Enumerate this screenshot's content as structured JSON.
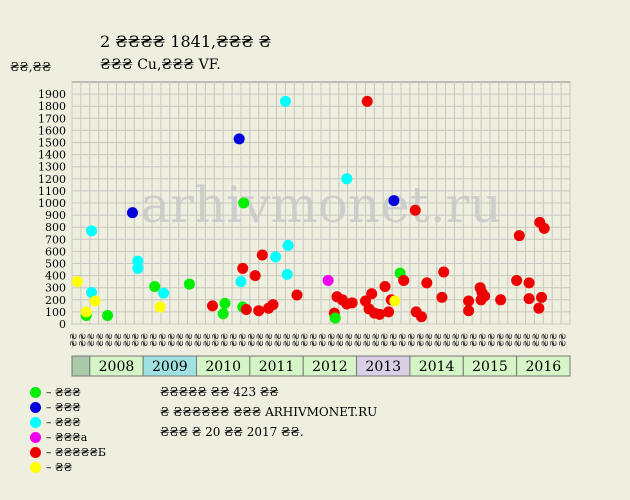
{
  "title": "2 ₴₴₴₴ 1841,₴₴₴ ₴",
  "subtitle": "₴₴₴ Cu,₴₴₴ VF.",
  "unit_label": "₴₴,₴₴",
  "watermark": "arhivmonet.ru",
  "notes": [
    "₴₴₴₴₴ ₴₴ 423 ₴₴",
    "₴ ₴₴₴₴₴₴ ₴₴₴ ARHIVMONET.RU",
    "₴₴₴ ₴ 20 ₴₴ 2017 ₴₴."
  ],
  "colors": {
    "background": "#efefdf",
    "plot_bg": "#efefdf",
    "grid": "#c8c8c0",
    "year_band_green": "#d6f5c6",
    "year_band_cyan": "#9fe0e0",
    "year_band_purple": "#d9d0e6",
    "year_band_gray": "#a9c9a9"
  },
  "legend": [
    {
      "label": "– ₴₴₴",
      "color": "#00ee00"
    },
    {
      "label": "– ₴₴₴",
      "color": "#0000dd"
    },
    {
      "label": "– ₴₴₴",
      "color": "#00ffff"
    },
    {
      "label": "– ₴₴₴а",
      "color": "#ee00ee"
    },
    {
      "label": "– ₴₴₴₴₴Б",
      "color": "#ee0000"
    },
    {
      "label": "– ₴₴",
      "color": "#ffff00"
    }
  ],
  "chart_data": {
    "type": "scatter",
    "ylim": [
      0,
      2000
    ],
    "yticks": [
      0,
      100,
      200,
      300,
      400,
      500,
      600,
      700,
      800,
      900,
      1000,
      1100,
      1200,
      1300,
      1400,
      1500,
      1600,
      1700,
      1800,
      1900
    ],
    "quarter_labels": [
      "₴₴",
      "₴₴",
      "₴₴",
      "₴₴"
    ],
    "years": [
      {
        "label": "2008",
        "band": "green"
      },
      {
        "label": "2009",
        "band": "cyan"
      },
      {
        "label": "2010",
        "band": "green"
      },
      {
        "label": "2011",
        "band": "green"
      },
      {
        "label": "2012",
        "band": "green"
      },
      {
        "label": "2013",
        "band": "purple"
      },
      {
        "label": "2014",
        "band": "green"
      },
      {
        "label": "2015",
        "band": "green"
      },
      {
        "label": "2016",
        "band": "green"
      }
    ],
    "x_range": [
      0,
      56
    ],
    "points": [
      {
        "x": 0.6,
        "y": 350,
        "c": "#ffff00"
      },
      {
        "x": 1.6,
        "y": 70,
        "c": "#00ee00"
      },
      {
        "x": 1.6,
        "y": 100,
        "c": "#ffff00"
      },
      {
        "x": 2.2,
        "y": 770,
        "c": "#00ffff"
      },
      {
        "x": 2.2,
        "y": 260,
        "c": "#00ffff"
      },
      {
        "x": 2.6,
        "y": 190,
        "c": "#ffff00"
      },
      {
        "x": 4.0,
        "y": 70,
        "c": "#00ee00"
      },
      {
        "x": 6.8,
        "y": 920,
        "c": "#0000dd"
      },
      {
        "x": 7.4,
        "y": 520,
        "c": "#00ffff"
      },
      {
        "x": 7.4,
        "y": 460,
        "c": "#00ffff"
      },
      {
        "x": 9.3,
        "y": 310,
        "c": "#00ee00"
      },
      {
        "x": 9.9,
        "y": 140,
        "c": "#ffff00"
      },
      {
        "x": 10.3,
        "y": 255,
        "c": "#00ffff"
      },
      {
        "x": 13.2,
        "y": 330,
        "c": "#00ee00"
      },
      {
        "x": 15.8,
        "y": 150,
        "c": "#ee0000"
      },
      {
        "x": 17.0,
        "y": 85,
        "c": "#00ee00"
      },
      {
        "x": 17.2,
        "y": 170,
        "c": "#00ee00"
      },
      {
        "x": 18.8,
        "y": 1530,
        "c": "#0000dd"
      },
      {
        "x": 19.3,
        "y": 1000,
        "c": "#00ee00"
      },
      {
        "x": 19.2,
        "y": 460,
        "c": "#ee0000"
      },
      {
        "x": 19.0,
        "y": 350,
        "c": "#00ffff"
      },
      {
        "x": 19.2,
        "y": 140,
        "c": "#00ee00"
      },
      {
        "x": 19.6,
        "y": 120,
        "c": "#ee0000"
      },
      {
        "x": 20.6,
        "y": 400,
        "c": "#ee0000"
      },
      {
        "x": 21.0,
        "y": 110,
        "c": "#ee0000"
      },
      {
        "x": 21.4,
        "y": 570,
        "c": "#ee0000"
      },
      {
        "x": 22.1,
        "y": 130,
        "c": "#ee0000"
      },
      {
        "x": 22.6,
        "y": 160,
        "c": "#ee0000"
      },
      {
        "x": 22.9,
        "y": 555,
        "c": "#00ffff"
      },
      {
        "x": 24.0,
        "y": 1840,
        "c": "#00ffff"
      },
      {
        "x": 24.2,
        "y": 410,
        "c": "#00ffff"
      },
      {
        "x": 24.3,
        "y": 650,
        "c": "#00ffff"
      },
      {
        "x": 25.3,
        "y": 240,
        "c": "#ee0000"
      },
      {
        "x": 28.8,
        "y": 360,
        "c": "#ee00ee"
      },
      {
        "x": 29.5,
        "y": 90,
        "c": "#ee0000"
      },
      {
        "x": 29.6,
        "y": 50,
        "c": "#00ee00"
      },
      {
        "x": 29.8,
        "y": 225,
        "c": "#ee0000"
      },
      {
        "x": 30.4,
        "y": 200,
        "c": "#ee0000"
      },
      {
        "x": 30.9,
        "y": 1200,
        "c": "#00ffff"
      },
      {
        "x": 30.9,
        "y": 165,
        "c": "#ee0000"
      },
      {
        "x": 31.5,
        "y": 175,
        "c": "#ee0000"
      },
      {
        "x": 33.2,
        "y": 1840,
        "c": "#ee0000"
      },
      {
        "x": 33.0,
        "y": 190,
        "c": "#ee0000"
      },
      {
        "x": 33.4,
        "y": 125,
        "c": "#ee0000"
      },
      {
        "x": 33.7,
        "y": 250,
        "c": "#ee0000"
      },
      {
        "x": 34.0,
        "y": 90,
        "c": "#ee0000"
      },
      {
        "x": 34.6,
        "y": 80,
        "c": "#ee0000"
      },
      {
        "x": 35.2,
        "y": 310,
        "c": "#ee0000"
      },
      {
        "x": 35.6,
        "y": 100,
        "c": "#ee0000"
      },
      {
        "x": 35.9,
        "y": 200,
        "c": "#ee0000"
      },
      {
        "x": 36.3,
        "y": 190,
        "c": "#ffff00"
      },
      {
        "x": 36.2,
        "y": 1020,
        "c": "#0000dd"
      },
      {
        "x": 36.9,
        "y": 420,
        "c": "#00ee00"
      },
      {
        "x": 37.3,
        "y": 360,
        "c": "#ee0000"
      },
      {
        "x": 38.6,
        "y": 940,
        "c": "#ee0000"
      },
      {
        "x": 38.7,
        "y": 100,
        "c": "#ee0000"
      },
      {
        "x": 39.3,
        "y": 60,
        "c": "#ee0000"
      },
      {
        "x": 39.9,
        "y": 340,
        "c": "#ee0000"
      },
      {
        "x": 41.6,
        "y": 220,
        "c": "#ee0000"
      },
      {
        "x": 41.8,
        "y": 430,
        "c": "#ee0000"
      },
      {
        "x": 44.6,
        "y": 190,
        "c": "#ee0000"
      },
      {
        "x": 44.6,
        "y": 110,
        "c": "#ee0000"
      },
      {
        "x": 45.9,
        "y": 300,
        "c": "#ee0000"
      },
      {
        "x": 46.1,
        "y": 260,
        "c": "#ee0000"
      },
      {
        "x": 46.0,
        "y": 200,
        "c": "#ee0000"
      },
      {
        "x": 46.4,
        "y": 230,
        "c": "#ee0000"
      },
      {
        "x": 48.2,
        "y": 200,
        "c": "#ee0000"
      },
      {
        "x": 50.0,
        "y": 360,
        "c": "#ee0000"
      },
      {
        "x": 50.3,
        "y": 730,
        "c": "#ee0000"
      },
      {
        "x": 51.4,
        "y": 340,
        "c": "#ee0000"
      },
      {
        "x": 51.4,
        "y": 210,
        "c": "#ee0000"
      },
      {
        "x": 52.6,
        "y": 840,
        "c": "#ee0000"
      },
      {
        "x": 53.1,
        "y": 790,
        "c": "#ee0000"
      },
      {
        "x": 52.8,
        "y": 220,
        "c": "#ee0000"
      },
      {
        "x": 52.5,
        "y": 130,
        "c": "#ee0000"
      }
    ]
  }
}
